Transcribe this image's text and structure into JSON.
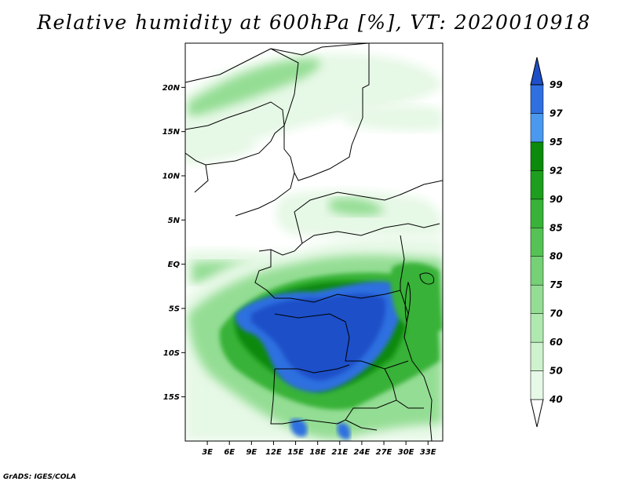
{
  "title": "Relative humidity at 600hPa [%], VT: 2020010918",
  "credit": "GrADS: IGES/COLA",
  "map": {
    "lon_range": [
      0,
      35
    ],
    "lat_range": [
      -20,
      25
    ],
    "lat_ticks": [
      {
        "value": 20,
        "label": "20N"
      },
      {
        "value": 15,
        "label": "15N"
      },
      {
        "value": 10,
        "label": "10N"
      },
      {
        "value": 5,
        "label": "5N"
      },
      {
        "value": 0,
        "label": "EQ"
      },
      {
        "value": -5,
        "label": "5S"
      },
      {
        "value": -10,
        "label": "10S"
      },
      {
        "value": -15,
        "label": "15S"
      }
    ],
    "lon_ticks": [
      {
        "value": 3,
        "label": "3E"
      },
      {
        "value": 6,
        "label": "6E"
      },
      {
        "value": 9,
        "label": "9E"
      },
      {
        "value": 12,
        "label": "12E"
      },
      {
        "value": 15,
        "label": "15E"
      },
      {
        "value": 18,
        "label": "18E"
      },
      {
        "value": 21,
        "label": "21E"
      },
      {
        "value": 24,
        "label": "24E"
      },
      {
        "value": 27,
        "label": "27E"
      },
      {
        "value": 30,
        "label": "30E"
      },
      {
        "value": 33,
        "label": "33E"
      }
    ]
  },
  "colorbar": {
    "levels": [
      "40",
      "50",
      "60",
      "70",
      "75",
      "80",
      "85",
      "90",
      "92",
      "95",
      "97",
      "99"
    ],
    "colors": [
      "#ffffff",
      "#e6f8e6",
      "#cdf2cd",
      "#b0e9b0",
      "#94dd94",
      "#76d076",
      "#55c255",
      "#38b238",
      "#1e9e1e",
      "#0c8a0c",
      "#4a99ee",
      "#2f6fe0",
      "#1f4fc8"
    ]
  },
  "humidity_palette": {
    "low": "#e6f8e6",
    "mid": "#94dd94",
    "high": "#38b238",
    "very_high": "#0c8a0c",
    "saturated": "#2f6fe0",
    "saturated_dark": "#1f4fc8"
  }
}
